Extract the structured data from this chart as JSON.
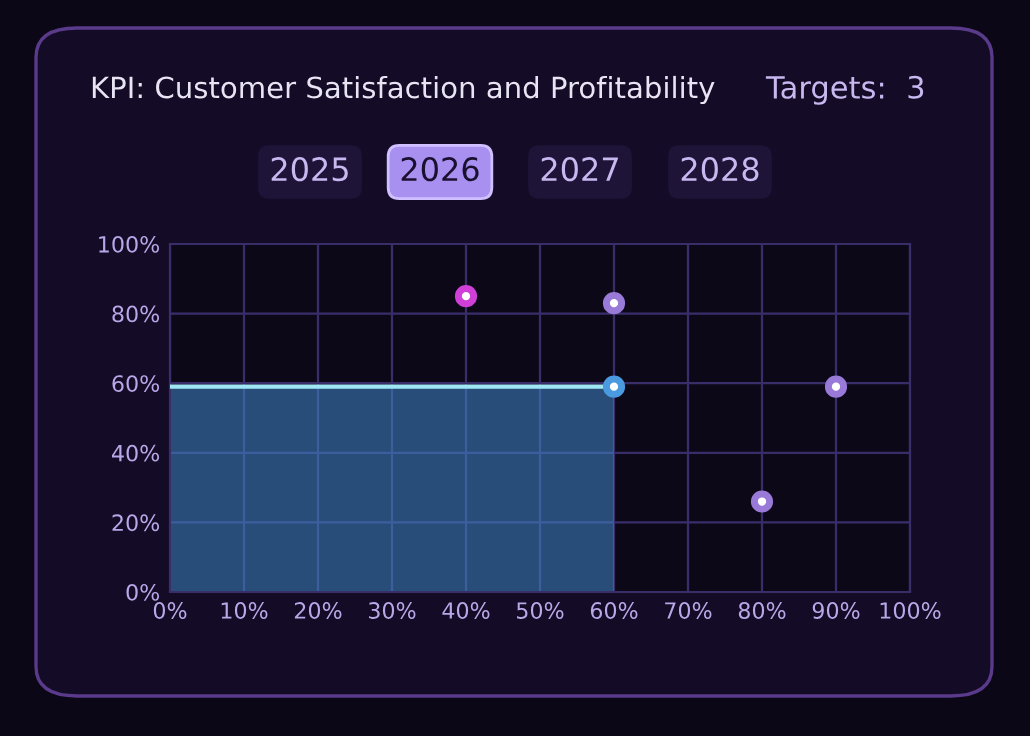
{
  "chart_data": {
    "type": "scatter",
    "title": "KPI: Customer Satisfaction and Profitability",
    "annotations": [
      "Targets:  3",
      "2025",
      "2026",
      "2027",
      "2028"
    ],
    "series": [
      {
        "type": "area",
        "x": [
          0,
          60
        ],
        "values": [
          59,
          59
        ],
        "color": "#3f86c8"
      },
      {
        "marker": "circle",
        "x": [
          40,
          60,
          60,
          80,
          90
        ],
        "values": [
          85,
          83,
          59,
          26,
          59
        ],
        "colors": [
          "#d040d8",
          "#9a7ad8",
          "#4a9ae0",
          "#9a7ad8",
          "#9a7ad8"
        ]
      }
    ],
    "xlim": [
      0,
      100
    ],
    "ylim": [
      0,
      100
    ],
    "xticks": [
      {
        "value": 0,
        "label": "0%"
      },
      {
        "value": 10,
        "label": "10%"
      },
      {
        "value": 20,
        "label": "20%"
      },
      {
        "value": 30,
        "label": "30%"
      },
      {
        "value": 40,
        "label": "40%"
      },
      {
        "value": 50,
        "label": "50%"
      },
      {
        "value": 60,
        "label": "60%"
      },
      {
        "value": 70,
        "label": "70%"
      },
      {
        "value": 80,
        "label": "80%"
      },
      {
        "value": 90,
        "label": "90%"
      },
      {
        "value": 100,
        "label": "100%"
      }
    ],
    "yticks": [
      {
        "value": 0,
        "label": "0%"
      },
      {
        "value": 20,
        "label": "20%"
      },
      {
        "value": 40,
        "label": "40%"
      },
      {
        "value": 60,
        "label": "60%"
      },
      {
        "value": 80,
        "label": "80%"
      },
      {
        "value": 100,
        "label": "100%"
      }
    ],
    "grid": true,
    "legend": false
  }
}
